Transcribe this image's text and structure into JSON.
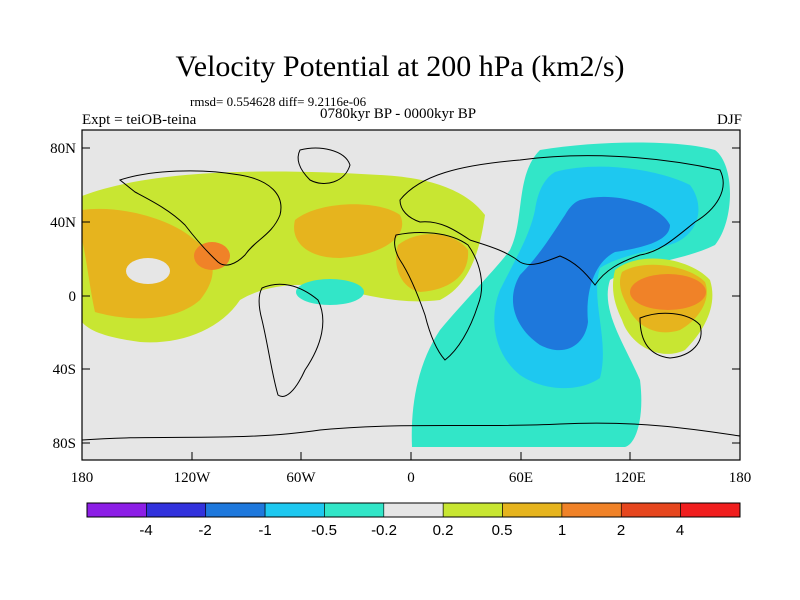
{
  "header": {
    "title": "Velocity Potential at 200 hPa (km2/s)",
    "stats": "rmsd= 0.554628  diff= 9.2116e-06",
    "experiment": "Expt = teiOB-teina",
    "period": "0780kyr BP - 0000kyr BP",
    "season": "DJF"
  },
  "map": {
    "lat_ticks": [
      "80N",
      "40N",
      "0",
      "40S",
      "80S"
    ],
    "lon_ticks": [
      "180",
      "120W",
      "60W",
      "0",
      "60E",
      "120E",
      "180"
    ]
  },
  "colorbar": {
    "colors": [
      "#8c1ee6",
      "#3232dc",
      "#1e78dc",
      "#1ec8f0",
      "#32e6c8",
      "#e6e6e6",
      "#c8e632",
      "#e6b41e",
      "#f08228",
      "#e6461e",
      "#f01e1e"
    ],
    "labels": [
      "-4",
      "-2",
      "-1",
      "-0.5",
      "-0.2",
      "0.2",
      "0.5",
      "1",
      "2",
      "4"
    ]
  }
}
